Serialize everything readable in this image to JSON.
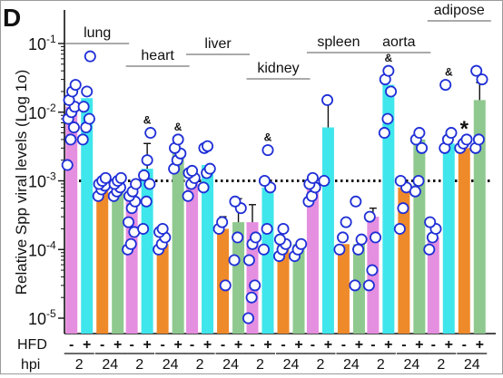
{
  "panel_label": "D",
  "chart_data": {
    "type": "bar",
    "panel": "D",
    "title": "",
    "ylabel": "Relative Spp viral levels (Log 1o)",
    "xlabel": "",
    "y_scale": "log",
    "ylim": [
      1e-05,
      0.1
    ],
    "yticks": [
      {
        "value": 0.1,
        "base": "10",
        "exp": "-1"
      },
      {
        "value": 0.01,
        "base": "10",
        "exp": "-2"
      },
      {
        "value": 0.001,
        "base": "10",
        "exp": "-3"
      },
      {
        "value": 0.0001,
        "base": "10",
        "exp": "-4"
      },
      {
        "value": 1e-05,
        "base": "10",
        "exp": "-5"
      }
    ],
    "threshold": 0.001,
    "row_labels": {
      "hfd": "HFD",
      "hpi": "hpi"
    },
    "timepoints": [
      "2",
      "24"
    ],
    "conditions": [
      {
        "hfd": "-",
        "hpi": "2",
        "color": "#e58fe0"
      },
      {
        "hfd": "+",
        "hpi": "2",
        "color": "#3fe6ec"
      },
      {
        "hfd": "-",
        "hpi": "24",
        "color": "#ef8a2a"
      },
      {
        "hfd": "+",
        "hpi": "24",
        "color": "#8fc98f"
      }
    ],
    "tissues": [
      {
        "name": "lung",
        "groups": [
          {
            "mean": 0.012,
            "err": 0,
            "marker": "",
            "points": [
              0.0017,
              0.004,
              0.006,
              0.008,
              0.01,
              0.012,
              0.015,
              0.02,
              0.025
            ]
          },
          {
            "mean": 0.016,
            "err": 0,
            "marker": "",
            "points": [
              0.004,
              0.006,
              0.008,
              0.012,
              0.02,
              0.065
            ]
          },
          {
            "mean": 0.00085,
            "err": 0,
            "marker": "",
            "points": [
              0.0006,
              0.00075,
              0.00085,
              0.0009,
              0.001,
              0.0011
            ]
          },
          {
            "mean": 0.0009,
            "err": 0,
            "marker": "",
            "points": [
              0.0006,
              0.0007,
              0.0008,
              0.0009,
              0.001,
              0.0011
            ]
          }
        ]
      },
      {
        "name": "heart",
        "groups": [
          {
            "mean": 0.0005,
            "err": 0,
            "marker": "",
            "points": [
              0.0001,
              0.00012,
              0.00018,
              0.00025,
              0.0004,
              0.0005,
              0.0006,
              0.0007,
              0.0009
            ]
          },
          {
            "mean": 0.0015,
            "err": 0.002,
            "marker": "&",
            "points": [
              0.0002,
              0.0005,
              0.0009,
              0.0012,
              0.002,
              0.005
            ]
          },
          {
            "mean": 0.00012,
            "err": 0,
            "marker": "",
            "points": [
              0.0001,
              0.00012,
              0.00015,
              0.00018,
              0.0002
            ]
          },
          {
            "mean": 0.0025,
            "err": 0,
            "marker": "&",
            "points": [
              0.0015,
              0.002,
              0.0025,
              0.003,
              0.004
            ]
          }
        ]
      },
      {
        "name": "liver",
        "groups": [
          {
            "mean": 0.001,
            "err": 0,
            "marker": "",
            "points": [
              0.0006,
              0.0009,
              0.0011,
              0.0013,
              0.0014
            ]
          },
          {
            "mean": 0.0017,
            "err": 0,
            "marker": "",
            "points": [
              0.0008,
              0.0013,
              0.0015,
              0.003,
              0.0032
            ]
          },
          {
            "mean": 0.0002,
            "err": 0.0001,
            "marker": "",
            "points": [
              0.0002,
              0.00025,
              3e-05
            ]
          },
          {
            "mean": 0.00025,
            "err": 0.0003,
            "marker": "",
            "points": [
              7e-05,
              0.00015,
              0.0004,
              0.0005
            ]
          }
        ]
      },
      {
        "name": "kidney",
        "groups": [
          {
            "mean": 0.00025,
            "err": 0.0002,
            "marker": "",
            "points": [
              1e-05,
              2e-05,
              3e-05,
              7e-05,
              0.00012,
              0.00015
            ]
          },
          {
            "mean": 0.0008,
            "err": 0,
            "marker": "&",
            "points": [
              0.0001,
              0.0002,
              0.0008,
              0.001,
              0.0028
            ]
          },
          {
            "mean": 0.00012,
            "err": 0,
            "marker": "",
            "points": [
              8e-05,
              0.0001,
              0.00012,
              0.00014,
              0.0002
            ]
          },
          {
            "mean": 0.00012,
            "err": 0,
            "marker": "",
            "points": [
              8e-05,
              0.0001,
              0.00012
            ]
          }
        ]
      },
      {
        "name": "spleen",
        "groups": [
          {
            "mean": 0.0008,
            "err": 0,
            "marker": "",
            "points": [
              0.0005,
              0.0006,
              0.0008,
              0.0009,
              0.0011
            ]
          },
          {
            "mean": 0.006,
            "err": 0.008,
            "marker": "",
            "points": [
              0.001,
              0.015
            ]
          },
          {
            "mean": 0.00012,
            "err": 0,
            "marker": "",
            "points": [
              0.0001,
              0.00015,
              0.00025
            ]
          },
          {
            "mean": 0.00012,
            "err": 0,
            "marker": "",
            "points": [
              3e-05,
              0.0001,
              0.00014,
              0.0005
            ]
          }
        ]
      },
      {
        "name": "aorta",
        "groups": [
          {
            "mean": 0.0003,
            "err": 0.0001,
            "marker": "",
            "points": [
              3e-05,
              5e-05,
              0.00015,
              0.0003
            ]
          },
          {
            "mean": 0.025,
            "err": 0,
            "marker": "&",
            "points": [
              0.005,
              0.008,
              0.02,
              0.03,
              0.04
            ]
          },
          {
            "mean": 0.0008,
            "err": 0,
            "marker": "",
            "points": [
              0.0002,
              0.0004,
              0.0008,
              0.001
            ]
          },
          {
            "mean": 0.004,
            "err": 0,
            "marker": "",
            "points": [
              0.0007,
              0.001,
              0.003,
              0.004,
              0.005
            ]
          }
        ]
      },
      {
        "name": "adipose",
        "groups": [
          {
            "mean": 0.00015,
            "err": 0,
            "marker": "",
            "points": [
              0.0001,
              0.00015,
              0.0002,
              0.00025
            ]
          },
          {
            "mean": 0.0035,
            "err": 0,
            "marker": "&",
            "points": [
              0.003,
              0.004,
              0.005,
              0.025
            ]
          },
          {
            "mean": 0.003,
            "err": 0,
            "marker": "*",
            "points": [
              0.003,
              0.0035,
              0.004
            ]
          },
          {
            "mean": 0.015,
            "err": 0.012,
            "marker": "",
            "points": [
              0.003,
              0.004,
              0.03,
              0.04
            ]
          }
        ]
      }
    ]
  }
}
